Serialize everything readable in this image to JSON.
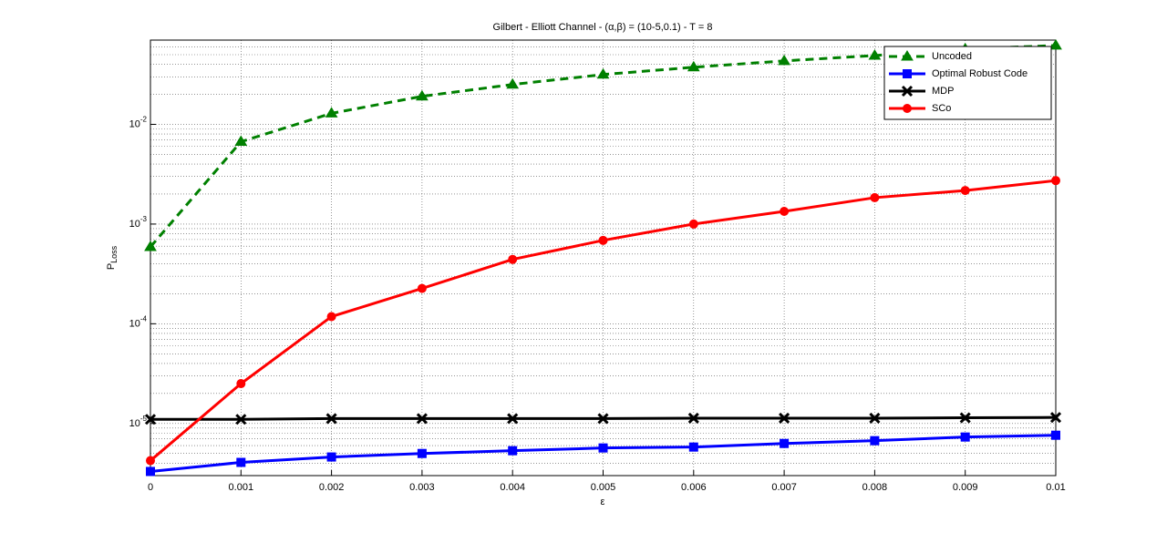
{
  "chart_data": {
    "type": "line",
    "title": "Gilbert - Elliott Channel - (α,β) = (10-5,0.1) - T = 8",
    "x_label": "ε",
    "y_label": "PLoss",
    "x": [
      0,
      0.001,
      0.002,
      0.003,
      0.004,
      0.005,
      0.006,
      0.007,
      0.008,
      0.009,
      0.01
    ],
    "xlim": [
      0,
      0.01
    ],
    "xticks": [
      0,
      0.001,
      0.002,
      0.003,
      0.004,
      0.005,
      0.006,
      0.007,
      0.008,
      0.009,
      0.01
    ],
    "ylim": [
      3e-06,
      0.07
    ],
    "yticks": [
      {
        "value": 1e-05,
        "label": "10-5"
      },
      {
        "value": 0.0001,
        "label": "10-4"
      },
      {
        "value": 0.001,
        "label": "10-3"
      },
      {
        "value": 0.01,
        "label": "10-2"
      }
    ],
    "y_scale": "log",
    "grid": true,
    "minor_grid": true,
    "legend": "top-right",
    "series": [
      {
        "name": "Uncoded",
        "color": "#008000",
        "marker": "triangle",
        "dash": true,
        "values": [
          0.00059,
          0.0067,
          0.0129,
          0.0191,
          0.0251,
          0.0316,
          0.0374,
          0.0433,
          0.049,
          0.0569,
          0.0618
        ]
      },
      {
        "name": "Optimal Robust Code",
        "color": "#0000ff",
        "marker": "square",
        "dash": false,
        "values": [
          3.3e-06,
          4.07e-06,
          4.61e-06,
          5e-06,
          5.33e-06,
          5.68e-06,
          5.8e-06,
          6.3e-06,
          6.72e-06,
          7.31e-06,
          7.62e-06
        ]
      },
      {
        "name": "MDP",
        "color": "#000000",
        "marker": "x",
        "dash": false,
        "values": [
          1.1e-05,
          1.1e-05,
          1.12e-05,
          1.12e-05,
          1.12e-05,
          1.12e-05,
          1.13e-05,
          1.13e-05,
          1.13e-05,
          1.14e-05,
          1.15e-05
        ]
      },
      {
        "name": "SCo",
        "color": "#ff0000",
        "marker": "circle",
        "dash": false,
        "values": [
          4.24e-06,
          2.51e-05,
          0.000118,
          0.000226,
          0.000442,
          0.000686,
          0.001,
          0.00134,
          0.00184,
          0.00217,
          0.00273
        ]
      }
    ]
  }
}
